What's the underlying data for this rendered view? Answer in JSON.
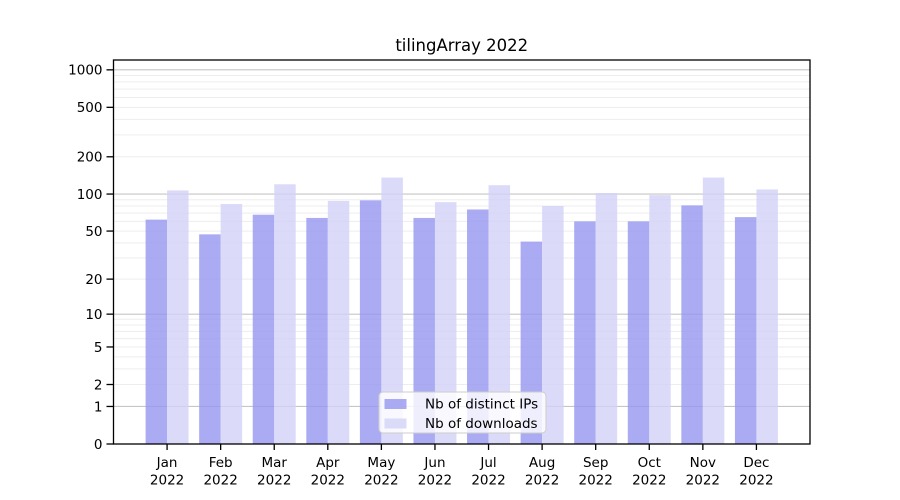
{
  "chart_data": {
    "type": "bar",
    "title": "tilingArray 2022",
    "categories": [
      "Jan",
      "Feb",
      "Mar",
      "Apr",
      "May",
      "Jun",
      "Jul",
      "Aug",
      "Sep",
      "Oct",
      "Nov",
      "Dec"
    ],
    "category_year": "2022",
    "series": [
      {
        "name": "Nb of distinct IPs",
        "color": "#9696f0",
        "opacity": 0.8,
        "values": [
          62,
          47,
          68,
          64,
          89,
          64,
          75,
          41,
          60,
          60,
          81,
          65
        ]
      },
      {
        "name": "Nb of downloads",
        "color": "#d2d2f7",
        "opacity": 0.8,
        "values": [
          107,
          83,
          120,
          88,
          136,
          86,
          118,
          80,
          102,
          98,
          136,
          109
        ]
      }
    ],
    "y_axis": {
      "scale": "log10(value+1)",
      "tick_values": [
        0,
        1,
        2,
        5,
        10,
        20,
        50,
        100,
        200,
        500,
        1000
      ],
      "range_max": 1200
    },
    "grid": {
      "major_line_values": [
        1,
        10,
        100,
        1000
      ],
      "minor_line_multiples": [
        2,
        3,
        4,
        5,
        6,
        7,
        8,
        9
      ],
      "major_color": "#c6c6c6",
      "minor_color": "#ededed"
    },
    "legend": {
      "position": "bottom-center",
      "background": "#ffffff",
      "border_color": "#cccccc"
    }
  }
}
